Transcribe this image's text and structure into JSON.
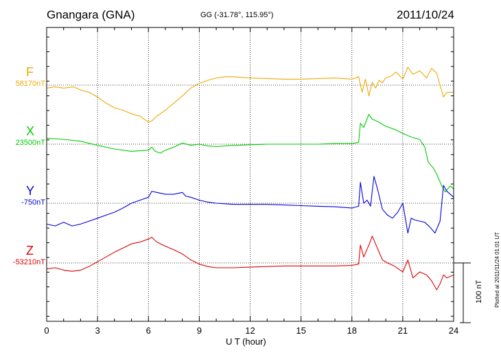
{
  "header": {
    "station": "Gnangara (GNA)",
    "coords": "GG (-31.78°, 115.95°)",
    "date": "2011/10/24"
  },
  "footer": {
    "plotted": "Plotted at 2011/11/24 01:01 UT",
    "scale": "100 nT"
  },
  "colors": {
    "F": "#f0a800",
    "X": "#00cc00",
    "Y": "#0000dd",
    "Z": "#dd0000"
  },
  "chart_data": {
    "type": "line",
    "xlabel": "U T (hour)",
    "xlim": [
      0,
      24
    ],
    "xticks": [
      0,
      3,
      6,
      9,
      12,
      15,
      18,
      21,
      24
    ],
    "tick_labels": [
      "0",
      "3",
      "6",
      "9",
      "12",
      "15",
      "18",
      "21",
      "24"
    ],
    "scale_nT": 100,
    "series": [
      {
        "name": "F",
        "baseline": "58170nT",
        "x": [
          0,
          0.5,
          1.0,
          1.6,
          2.0,
          2.5,
          3.0,
          3.5,
          4.0,
          4.5,
          5.0,
          5.5,
          5.8,
          6.0,
          6.2,
          6.5,
          7.0,
          7.5,
          8.0,
          8.5,
          9.0,
          9.5,
          10.0,
          10.5,
          11.0,
          12.0,
          13.0,
          14.0,
          15.0,
          16.0,
          17.0,
          18.0,
          18.4,
          18.6,
          18.8,
          19.0,
          19.2,
          19.4,
          19.6,
          19.8,
          20.0,
          20.3,
          20.6,
          21.0,
          21.3,
          21.6,
          22.0,
          22.4,
          22.7,
          23.0,
          23.2,
          23.4,
          23.6,
          24.0
        ],
        "y": [
          -5,
          -3,
          -5,
          -3,
          -8,
          -12,
          -20,
          -30,
          -38,
          -42,
          -48,
          -52,
          -58,
          -62,
          -60,
          -52,
          -42,
          -30,
          -18,
          -5,
          3,
          8,
          12,
          14,
          14,
          12,
          11,
          10,
          10,
          11,
          12,
          10,
          14,
          -12,
          10,
          -18,
          5,
          -5,
          8,
          4,
          12,
          15,
          22,
          10,
          30,
          18,
          24,
          12,
          28,
          20,
          0,
          -20,
          -12,
          -12
        ]
      },
      {
        "name": "X",
        "baseline": "23500nT",
        "x": [
          0,
          1.0,
          2.0,
          3.0,
          4.0,
          5.0,
          6.0,
          6.2,
          6.4,
          6.7,
          7.0,
          7.5,
          8.0,
          8.5,
          9.0,
          9.5,
          10.0,
          11.0,
          12.0,
          13.0,
          14.0,
          15.0,
          16.0,
          17.0,
          18.0,
          18.4,
          18.5,
          18.7,
          19.0,
          19.2,
          19.5,
          20.0,
          20.5,
          21.0,
          21.5,
          22.0,
          22.3,
          22.5,
          22.8,
          23.0,
          23.3,
          23.5,
          23.8,
          24.0
        ],
        "y": [
          10,
          8,
          5,
          -2,
          -8,
          -12,
          -10,
          -5,
          -12,
          -15,
          -10,
          -5,
          2,
          -2,
          0,
          -3,
          -4,
          -2,
          -1,
          0,
          0,
          0,
          0,
          1,
          1,
          3,
          35,
          28,
          50,
          42,
          38,
          30,
          25,
          18,
          12,
          8,
          -5,
          -30,
          -40,
          -50,
          -70,
          -80,
          -70,
          -75
        ]
      },
      {
        "name": "Y",
        "baseline": "-750nT",
        "x": [
          0,
          0.5,
          1.0,
          1.5,
          2.0,
          2.5,
          3.0,
          3.5,
          4.0,
          4.5,
          5.0,
          5.5,
          6.0,
          6.2,
          6.5,
          7.0,
          7.5,
          8.0,
          8.2,
          8.5,
          9.0,
          9.5,
          10.0,
          11.0,
          12.0,
          13.0,
          14.0,
          15.0,
          16.0,
          17.0,
          18.0,
          18.4,
          18.5,
          18.7,
          18.9,
          19.1,
          19.3,
          19.5,
          19.8,
          20.1,
          20.4,
          20.7,
          21.0,
          21.3,
          21.5,
          21.7,
          22.0,
          22.3,
          22.6,
          22.9,
          23.2,
          23.4,
          23.6,
          24.0
        ],
        "y": [
          -35,
          -38,
          -32,
          -38,
          -35,
          -30,
          -25,
          -20,
          -15,
          -8,
          0,
          5,
          10,
          20,
          18,
          15,
          15,
          18,
          12,
          10,
          5,
          2,
          0,
          -2,
          -2,
          -2,
          -3,
          -4,
          -5,
          -6,
          -8,
          -5,
          35,
          0,
          5,
          -5,
          45,
          25,
          -10,
          -20,
          -25,
          -15,
          0,
          -50,
          -25,
          -28,
          -30,
          -32,
          -40,
          -50,
          -30,
          30,
          20,
          10
        ]
      },
      {
        "name": "Z",
        "baseline": "-53210nT",
        "x": [
          0,
          0.5,
          1.0,
          1.5,
          2.0,
          2.5,
          3.0,
          3.5,
          4.0,
          4.5,
          5.0,
          5.5,
          6.0,
          6.2,
          6.5,
          7.0,
          7.5,
          8.0,
          8.5,
          9.0,
          9.5,
          10.0,
          11.0,
          12.0,
          13.0,
          14.0,
          15.0,
          16.0,
          17.0,
          18.0,
          18.4,
          18.5,
          18.7,
          19.0,
          19.2,
          19.5,
          19.8,
          20.1,
          20.5,
          21.0,
          21.3,
          21.6,
          22.0,
          22.4,
          22.7,
          23.0,
          23.2,
          23.4,
          23.6,
          24.0
        ],
        "y": [
          -10,
          -8,
          -12,
          -14,
          -12,
          -6,
          2,
          10,
          18,
          25,
          32,
          35,
          40,
          43,
          35,
          28,
          22,
          15,
          5,
          -2,
          -6,
          -8,
          -8,
          -7,
          -6,
          -5,
          -5,
          -5,
          -5,
          -4,
          -2,
          30,
          10,
          30,
          45,
          25,
          5,
          0,
          -5,
          -15,
          5,
          -25,
          -15,
          -20,
          -30,
          -45,
          -35,
          -20,
          -25,
          -20
        ]
      }
    ]
  }
}
